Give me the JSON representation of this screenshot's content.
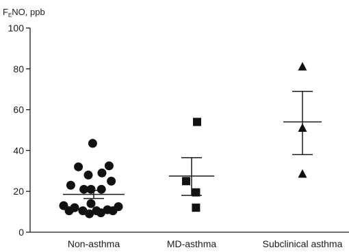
{
  "chart_data": {
    "type": "scatter",
    "title": "",
    "ylabel": "F",
    "ylabel_subscript": "E",
    "ylabel_rest": "NO, ppb",
    "ylim": [
      0,
      100
    ],
    "yticks": [
      0,
      20,
      40,
      60,
      80,
      100
    ],
    "categories": [
      "Non-asthma",
      "MD-asthma",
      "Subclinical asthma"
    ],
    "grid": false,
    "legend": "none",
    "groups": [
      {
        "name": "Non-asthma",
        "marker": "circle",
        "mean": 18.5,
        "sem_low": 16.5,
        "sem_high": 20.5,
        "points": [
          {
            "offset": -0.02,
            "y": 43.5
          },
          {
            "offset": -0.28,
            "y": 32
          },
          {
            "offset": 0.28,
            "y": 32.5
          },
          {
            "offset": 0.15,
            "y": 29
          },
          {
            "offset": -0.1,
            "y": 28
          },
          {
            "offset": 0.32,
            "y": 25
          },
          {
            "offset": -0.42,
            "y": 23
          },
          {
            "offset": -0.18,
            "y": 21
          },
          {
            "offset": -0.05,
            "y": 21
          },
          {
            "offset": 0.14,
            "y": 21
          },
          {
            "offset": -0.05,
            "y": 14
          },
          {
            "offset": -0.55,
            "y": 13
          },
          {
            "offset": -0.35,
            "y": 12
          },
          {
            "offset": 0.25,
            "y": 11
          },
          {
            "offset": 0.45,
            "y": 12.5
          },
          {
            "offset": -0.45,
            "y": 10.5
          },
          {
            "offset": -0.2,
            "y": 10.5
          },
          {
            "offset": 0.05,
            "y": 10.5
          },
          {
            "offset": 0.35,
            "y": 10.5
          },
          {
            "offset": -0.08,
            "y": 9
          },
          {
            "offset": 0.13,
            "y": 9.5
          }
        ]
      },
      {
        "name": "MD-asthma",
        "marker": "square",
        "mean": 27.5,
        "sem_low": 18,
        "sem_high": 36.5,
        "points": [
          {
            "offset": 0.1,
            "y": 54
          },
          {
            "offset": -0.1,
            "y": 25
          },
          {
            "offset": 0.08,
            "y": 19.5
          },
          {
            "offset": 0.08,
            "y": 12
          }
        ]
      },
      {
        "name": "Subclinical asthma",
        "marker": "triangle",
        "mean": 54,
        "sem_low": 38,
        "sem_high": 69,
        "points": [
          {
            "offset": 0,
            "y": 81
          },
          {
            "offset": 0,
            "y": 51
          },
          {
            "offset": 0,
            "y": 28.5
          }
        ]
      }
    ]
  }
}
